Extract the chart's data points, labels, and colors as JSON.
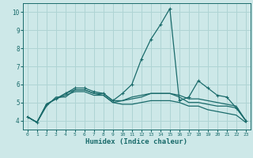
{
  "xlabel": "Humidex (Indice chaleur)",
  "ylabel": "",
  "bg_color": "#cde8e8",
  "grid_color": "#afd4d4",
  "line_color": "#1a6b6b",
  "x_values": [
    0,
    1,
    2,
    3,
    4,
    5,
    6,
    7,
    8,
    9,
    10,
    11,
    12,
    13,
    14,
    15,
    16,
    17,
    18,
    19,
    20,
    21,
    22,
    23
  ],
  "series": [
    [
      4.2,
      3.9,
      4.8,
      5.3,
      5.3,
      5.7,
      5.7,
      5.5,
      5.5,
      5.1,
      5.1,
      5.3,
      5.4,
      5.5,
      5.5,
      5.5,
      5.4,
      5.2,
      5.2,
      5.1,
      5.0,
      4.9,
      4.8,
      4.0
    ],
    [
      4.2,
      3.9,
      4.9,
      5.2,
      5.5,
      5.8,
      5.8,
      5.6,
      5.5,
      5.1,
      5.5,
      6.0,
      7.4,
      8.5,
      9.3,
      10.2,
      5.1,
      5.3,
      6.2,
      5.8,
      5.4,
      5.3,
      4.7,
      4.0
    ],
    [
      4.2,
      3.9,
      4.9,
      5.2,
      5.5,
      5.7,
      5.7,
      5.5,
      5.4,
      5.0,
      5.1,
      5.2,
      5.3,
      5.5,
      5.5,
      5.5,
      5.3,
      5.0,
      5.0,
      4.9,
      4.8,
      4.8,
      4.7,
      4.0
    ],
    [
      4.2,
      3.9,
      4.9,
      5.2,
      5.4,
      5.6,
      5.6,
      5.4,
      5.4,
      5.0,
      4.9,
      4.9,
      5.0,
      5.1,
      5.1,
      5.1,
      5.0,
      4.8,
      4.8,
      4.6,
      4.5,
      4.4,
      4.3,
      3.9
    ]
  ],
  "xlim": [
    -0.5,
    23.5
  ],
  "ylim": [
    3.5,
    10.5
  ],
  "yticks": [
    4,
    5,
    6,
    7,
    8,
    9,
    10
  ],
  "xticks": [
    0,
    1,
    2,
    3,
    4,
    5,
    6,
    7,
    8,
    9,
    10,
    11,
    12,
    13,
    14,
    15,
    16,
    17,
    18,
    19,
    20,
    21,
    22,
    23
  ]
}
